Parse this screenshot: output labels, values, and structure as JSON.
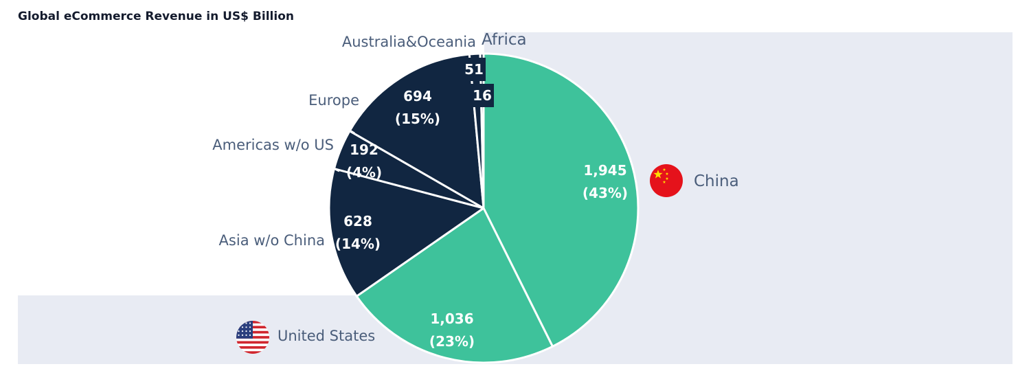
{
  "chart_data": {
    "type": "pie",
    "title": "Global eCommerce Revenue in US$ Billion",
    "unit": "US$ Billion",
    "slices": [
      {
        "name": "China",
        "value": 1945,
        "value_label": "1,945",
        "percent_label": "(43%)",
        "color": "#3ec29b",
        "flag": "china-flag-icon"
      },
      {
        "name": "United States",
        "value": 1036,
        "value_label": "1,036",
        "percent_label": "(23%)",
        "color": "#3ec29b",
        "flag": "us-flag-icon"
      },
      {
        "name": "Asia w/o China",
        "value": 628,
        "value_label": "628",
        "percent_label": "(14%)",
        "color": "#112641"
      },
      {
        "name": "Americas w/o US",
        "value": 192,
        "value_label": "192",
        "percent_label": "(4%)",
        "color": "#112641"
      },
      {
        "name": "Europe",
        "value": 694,
        "value_label": "694",
        "percent_label": "(15%)",
        "color": "#112641"
      },
      {
        "name": "Australia&Oceania",
        "value": 51,
        "value_label": "51",
        "percent_label": "",
        "color": "#112641"
      },
      {
        "name": "Africa",
        "value": 16,
        "value_label": "16",
        "percent_label": "",
        "color": "#112641"
      }
    ],
    "background_colors": {
      "panel": "#e8ebf3",
      "slice_border": "#ffffff",
      "label_text": "#4a5d7a"
    }
  }
}
